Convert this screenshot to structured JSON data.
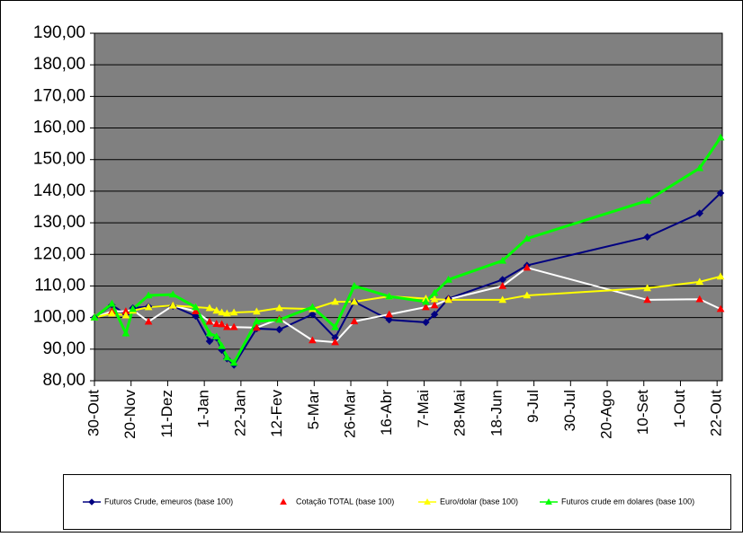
{
  "chart_data": {
    "type": "line",
    "x": [
      0,
      10,
      18,
      22,
      31,
      45,
      58,
      66,
      70,
      73,
      76,
      80,
      93,
      106,
      125,
      138,
      149,
      169,
      190,
      195,
      203,
      234,
      248,
      317,
      347,
      359
    ],
    "xlim": [
      0,
      360
    ],
    "xticks": [
      {
        "value": 0,
        "label": "30-Out"
      },
      {
        "value": 21,
        "label": "20-Nov"
      },
      {
        "value": 42,
        "label": "11-Dez"
      },
      {
        "value": 63,
        "label": "1-Jan"
      },
      {
        "value": 84,
        "label": "22-Jan"
      },
      {
        "value": 105,
        "label": "12-Fev"
      },
      {
        "value": 126,
        "label": "5-Mar"
      },
      {
        "value": 147,
        "label": "26-Mar"
      },
      {
        "value": 168,
        "label": "16-Abr"
      },
      {
        "value": 189,
        "label": "7-Mai"
      },
      {
        "value": 210,
        "label": "28-Mai"
      },
      {
        "value": 231,
        "label": "18-Jun"
      },
      {
        "value": 252,
        "label": "9-Jul"
      },
      {
        "value": 273,
        "label": "30-Jul"
      },
      {
        "value": 294,
        "label": "20-Ago"
      },
      {
        "value": 315,
        "label": "10-Set"
      },
      {
        "value": 336,
        "label": "1-Out"
      },
      {
        "value": 357,
        "label": "22-Out"
      }
    ],
    "ylim": [
      80,
      190
    ],
    "yticks": [
      {
        "value": 80,
        "label": "80,00"
      },
      {
        "value": 90,
        "label": "90,00"
      },
      {
        "value": 100,
        "label": "100,00"
      },
      {
        "value": 110,
        "label": "110,00"
      },
      {
        "value": 120,
        "label": "120,00"
      },
      {
        "value": 130,
        "label": "130,00"
      },
      {
        "value": 140,
        "label": "140,00"
      },
      {
        "value": 150,
        "label": "150,00"
      },
      {
        "value": 160,
        "label": "160,00"
      },
      {
        "value": 170,
        "label": "170,00"
      },
      {
        "value": 180,
        "label": "180,00"
      },
      {
        "value": 190,
        "label": "190,00"
      }
    ],
    "grid": true,
    "plot_background": "#808080",
    "legend": "bottom",
    "series": [
      {
        "name": "Futuros Crude, emeuros (base 100)",
        "color": "#000080",
        "line_color": "#000080",
        "marker": "diamond",
        "values": [
          100,
          104,
          101,
          103,
          103.5,
          103.6,
          100.5,
          92.5,
          93.6,
          89.7,
          87,
          85,
          96.5,
          96.2,
          101,
          93.6,
          105,
          99.3,
          98.5,
          101,
          106,
          112,
          116.5,
          125.5,
          133,
          139.4
        ]
      },
      {
        "name": "Cotação TOTAL (base 100)",
        "color": "#ff0000",
        "line_color": "#ffffff",
        "marker": "triangle",
        "values": [
          100,
          102,
          102,
          102.4,
          98.7,
          103.8,
          102,
          98.7,
          98,
          97.9,
          97,
          97,
          96.8,
          99.6,
          92.8,
          92.2,
          98.8,
          101,
          103.3,
          103.9,
          105.8,
          110,
          115.8,
          105.6,
          105.8,
          102.7
        ]
      },
      {
        "name": "Euro/dolar (base 100)",
        "color": "#ffff00",
        "line_color": "#ffff00",
        "marker": "triangle",
        "values": [
          100,
          101.3,
          100.7,
          102.2,
          103.3,
          103.8,
          103.3,
          103,
          102.2,
          101.6,
          101.3,
          101.6,
          101.9,
          103,
          102.7,
          105,
          105,
          106.7,
          106,
          105.8,
          105.6,
          105.6,
          107,
          109.3,
          111.3,
          113
        ]
      },
      {
        "name": "Futuros crude em dolares (base 100)",
        "color": "#00ff00",
        "line_color": "#00ff00",
        "marker": "triangle",
        "values": [
          100,
          104.4,
          95,
          102.7,
          107,
          107.3,
          103.3,
          95,
          94,
          91,
          87.4,
          85.7,
          98.8,
          99.3,
          103.3,
          97,
          110,
          106.7,
          105,
          107.8,
          112,
          118,
          125,
          137,
          147.3,
          157
        ]
      }
    ]
  }
}
